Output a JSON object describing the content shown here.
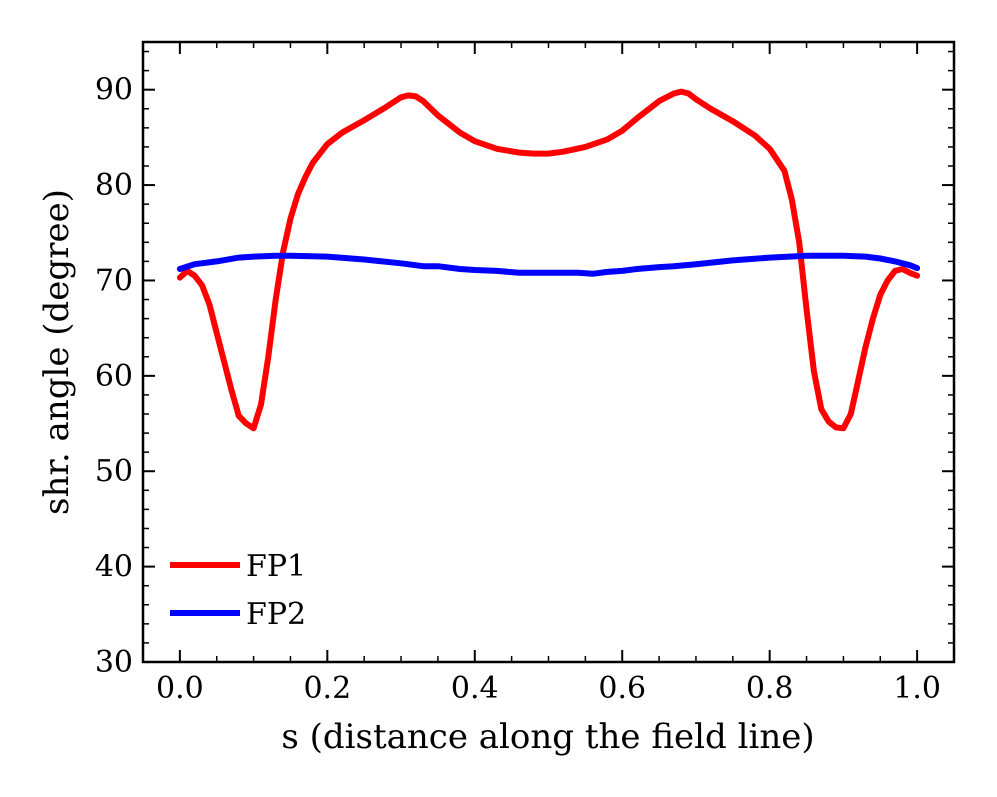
{
  "chart_data": {
    "type": "line",
    "title": "",
    "xlabel": "s (distance along the field line)",
    "ylabel": "shr. angle (degree)",
    "xlim": [
      -0.05,
      1.05
    ],
    "ylim": [
      30,
      95
    ],
    "x_ticks": [
      0.0,
      0.2,
      0.4,
      0.6,
      0.8,
      1.0
    ],
    "x_tick_labels": [
      "0.0",
      "0.2",
      "0.4",
      "0.6",
      "0.8",
      "1.0"
    ],
    "y_ticks": [
      30,
      40,
      50,
      60,
      70,
      80,
      90
    ],
    "y_tick_labels": [
      "30",
      "40",
      "50",
      "60",
      "70",
      "80",
      "90"
    ],
    "legend_position": "lower-left",
    "grid": false,
    "series": [
      {
        "name": "FP1",
        "color": "#ff0000",
        "x": [
          0.0,
          0.01,
          0.02,
          0.03,
          0.04,
          0.05,
          0.06,
          0.07,
          0.08,
          0.09,
          0.1,
          0.11,
          0.12,
          0.13,
          0.14,
          0.15,
          0.16,
          0.17,
          0.18,
          0.2,
          0.22,
          0.25,
          0.28,
          0.3,
          0.31,
          0.32,
          0.33,
          0.35,
          0.38,
          0.4,
          0.43,
          0.46,
          0.48,
          0.5,
          0.52,
          0.55,
          0.58,
          0.6,
          0.62,
          0.65,
          0.67,
          0.68,
          0.69,
          0.7,
          0.72,
          0.75,
          0.78,
          0.8,
          0.82,
          0.83,
          0.84,
          0.85,
          0.86,
          0.87,
          0.88,
          0.89,
          0.9,
          0.91,
          0.92,
          0.93,
          0.94,
          0.95,
          0.96,
          0.97,
          0.98,
          0.99,
          1.0
        ],
        "y": [
          70.3,
          71.0,
          70.5,
          69.5,
          67.5,
          64.5,
          61.5,
          58.5,
          55.8,
          55.0,
          54.5,
          57.0,
          62.0,
          68.0,
          73.0,
          76.5,
          79.0,
          80.8,
          82.3,
          84.3,
          85.5,
          86.8,
          88.2,
          89.2,
          89.4,
          89.3,
          88.8,
          87.3,
          85.5,
          84.6,
          83.8,
          83.4,
          83.3,
          83.3,
          83.5,
          84.0,
          84.8,
          85.7,
          87.0,
          88.8,
          89.6,
          89.8,
          89.6,
          89.0,
          88.0,
          86.7,
          85.2,
          83.8,
          81.5,
          78.5,
          74.0,
          67.0,
          60.5,
          56.5,
          55.2,
          54.6,
          54.5,
          56.0,
          59.5,
          63.0,
          66.0,
          68.5,
          70.0,
          71.0,
          71.2,
          70.8,
          70.5
        ]
      },
      {
        "name": "FP2",
        "color": "#0000ff",
        "x": [
          0.0,
          0.02,
          0.05,
          0.08,
          0.1,
          0.13,
          0.15,
          0.2,
          0.25,
          0.3,
          0.33,
          0.35,
          0.38,
          0.4,
          0.43,
          0.46,
          0.5,
          0.54,
          0.56,
          0.58,
          0.6,
          0.62,
          0.65,
          0.67,
          0.7,
          0.75,
          0.8,
          0.85,
          0.88,
          0.9,
          0.93,
          0.95,
          0.97,
          0.99,
          1.0
        ],
        "y": [
          71.2,
          71.7,
          72.0,
          72.4,
          72.5,
          72.6,
          72.6,
          72.5,
          72.2,
          71.8,
          71.5,
          71.5,
          71.2,
          71.1,
          71.0,
          70.8,
          70.8,
          70.8,
          70.7,
          70.9,
          71.0,
          71.2,
          71.4,
          71.5,
          71.7,
          72.1,
          72.4,
          72.6,
          72.6,
          72.6,
          72.5,
          72.3,
          72.0,
          71.6,
          71.3
        ]
      }
    ]
  }
}
